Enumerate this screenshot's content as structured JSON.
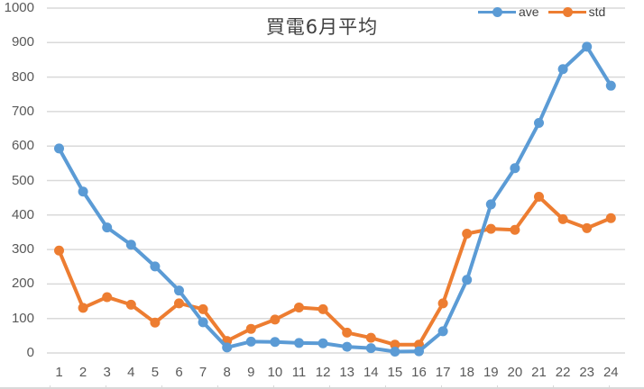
{
  "chart_data": {
    "type": "line",
    "title": "買電6月平均",
    "xlabel": "",
    "ylabel": "",
    "categories": [
      "1",
      "2",
      "3",
      "4",
      "5",
      "6",
      "7",
      "8",
      "9",
      "10",
      "11",
      "12",
      "13",
      "14",
      "15",
      "16",
      "17",
      "18",
      "19",
      "20",
      "21",
      "22",
      "23",
      "24"
    ],
    "series": [
      {
        "name": "ave",
        "color": "#5b9bd5",
        "values": [
          593,
          468,
          364,
          314,
          251,
          181,
          89,
          16,
          33,
          32,
          29,
          28,
          18,
          14,
          4,
          5,
          63,
          212,
          431,
          536,
          667,
          823,
          888,
          775
        ]
      },
      {
        "name": "std",
        "color": "#ed7d31",
        "values": [
          297,
          131,
          162,
          140,
          88,
          144,
          127,
          35,
          70,
          97,
          132,
          127,
          59,
          44,
          24,
          24,
          144,
          346,
          360,
          357,
          453,
          388,
          362,
          391
        ]
      }
    ],
    "ylim": [
      0,
      1000
    ],
    "yticks": [
      "0",
      "100",
      "200",
      "300",
      "400",
      "500",
      "600",
      "700",
      "800",
      "900",
      "1000"
    ],
    "grid": true,
    "legend_position": "top-right"
  }
}
